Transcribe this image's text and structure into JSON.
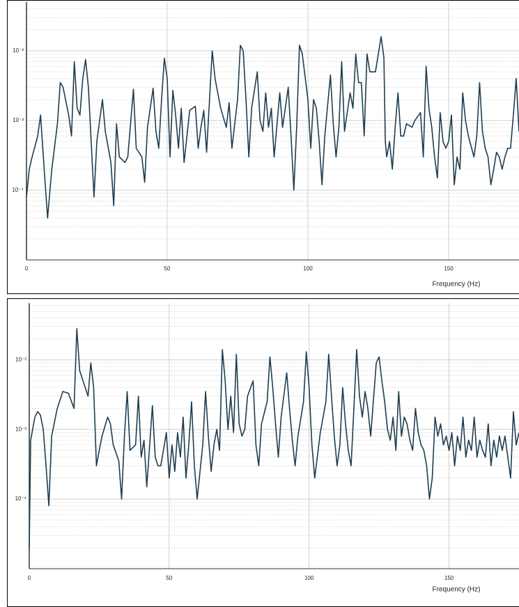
{
  "chart_data": [
    {
      "type": "line",
      "xlabel": "Frequency (Hz)",
      "log_y": true,
      "grid": true,
      "minor_grid": true,
      "xlim": [
        0,
        175
      ],
      "xticks": [
        0,
        50,
        100,
        150
      ],
      "ylim": [
        1e-05,
        0.05
      ],
      "yticks": [
        {
          "value": 0.0001,
          "label": "10⁻⁴"
        },
        {
          "value": 0.001,
          "label": "10⁻³"
        },
        {
          "value": 0.01,
          "label": "10⁻²"
        }
      ],
      "series": [
        {
          "color": "#1e3d50",
          "x": [
            0,
            1,
            2,
            4,
            5,
            6,
            7.5,
            9,
            11,
            12,
            13,
            15,
            16,
            17,
            18,
            19,
            20,
            21,
            22,
            24,
            25,
            27,
            28,
            30,
            31,
            32,
            33,
            35,
            36,
            38,
            39,
            41,
            42,
            43,
            45,
            46,
            47,
            48,
            49,
            50,
            51,
            52,
            53,
            54,
            55,
            56,
            58,
            60,
            61,
            62,
            63,
            64,
            66,
            67,
            69,
            71,
            72,
            73,
            75,
            76,
            77,
            78,
            79,
            80,
            82,
            83,
            84,
            85,
            86,
            87,
            88,
            90,
            91,
            93,
            94,
            95,
            96,
            97,
            98,
            100,
            101,
            102,
            103,
            104,
            105,
            106,
            108,
            109,
            110,
            111,
            112,
            113,
            115,
            116,
            117,
            118,
            119,
            120,
            121,
            122,
            124,
            126,
            127,
            127.5,
            128,
            129,
            130,
            131,
            132,
            133,
            134,
            135,
            137,
            138,
            140,
            141,
            142,
            143,
            144,
            145,
            146,
            147,
            148,
            149,
            150,
            151,
            152,
            153,
            154,
            155,
            156,
            157,
            159,
            160,
            161,
            162,
            163,
            164,
            165,
            166,
            167,
            168,
            169,
            170,
            171,
            172,
            173,
            174,
            175
          ],
          "values": [
            8e-05,
            0.0002,
            0.0003,
            0.0006,
            0.0012,
            0.0003,
            4e-05,
            0.0002,
            0.0009,
            0.0035,
            0.003,
            0.0012,
            0.0006,
            0.007,
            0.0015,
            0.0012,
            0.004,
            0.0075,
            0.003,
            8e-05,
            0.0005,
            0.002,
            0.0007,
            0.00025,
            6e-05,
            0.0009,
            0.0003,
            0.00025,
            0.0003,
            0.0028,
            0.0004,
            0.0003,
            0.00013,
            0.0008,
            0.0029,
            0.0007,
            0.0004,
            0.002,
            0.0078,
            0.004,
            0.0003,
            0.0027,
            0.0012,
            0.0004,
            0.0015,
            0.00025,
            0.0014,
            0.0016,
            0.0004,
            0.0008,
            0.0014,
            0.00035,
            0.01,
            0.004,
            0.0015,
            0.0008,
            0.0018,
            0.0004,
            0.002,
            0.012,
            0.01,
            0.002,
            0.0003,
            0.0015,
            0.005,
            0.001,
            0.0007,
            0.0025,
            0.0008,
            0.0015,
            0.0003,
            0.0025,
            0.0008,
            0.003,
            0.0006,
            0.0001,
            0.0008,
            0.012,
            0.009,
            0.002,
            0.0004,
            0.002,
            0.0015,
            0.0005,
            0.00012,
            0.0006,
            0.0045,
            0.0009,
            0.0003,
            0.0008,
            0.007,
            0.0007,
            0.0025,
            0.0015,
            0.009,
            0.0035,
            0.0035,
            0.0006,
            0.009,
            0.005,
            0.005,
            0.016,
            0.008,
            0.0005,
            0.0003,
            0.0005,
            0.0002,
            0.0008,
            0.0025,
            0.0006,
            0.0006,
            0.0009,
            0.0008,
            0.001,
            0.0013,
            0.0003,
            0.006,
            0.0015,
            0.0008,
            0.0003,
            0.00015,
            0.0013,
            0.0005,
            0.0004,
            0.0005,
            0.0012,
            0.00012,
            0.0003,
            0.0002,
            0.0025,
            0.001,
            0.0006,
            0.0003,
            0.0006,
            0.0035,
            0.0007,
            0.0004,
            0.0003,
            0.00012,
            0.0002,
            0.00035,
            0.0003,
            0.0002,
            0.0003,
            0.0004,
            0.0004,
            0.0012,
            0.004,
            0.0007
          ]
        }
      ]
    },
    {
      "type": "line",
      "xlabel": "Frequency (Hz)",
      "log_y": true,
      "grid": true,
      "minor_grid": true,
      "xlim": [
        0,
        175
      ],
      "xticks": [
        0,
        50,
        100,
        150
      ],
      "ylim": [
        1e-05,
        0.065
      ],
      "yticks": [
        {
          "value": 0.0001,
          "label": "10⁻⁴"
        },
        {
          "value": 0.001,
          "label": "10⁻³"
        },
        {
          "value": 0.01,
          "label": "10⁻²"
        }
      ],
      "series": [
        {
          "color": "#1e3d50",
          "x": [
            0,
            0.5,
            2,
            3,
            4,
            5,
            6,
            7,
            8,
            10,
            12,
            14,
            16,
            17,
            18,
            20,
            21,
            22,
            23,
            24,
            25,
            26,
            28,
            29,
            30,
            32,
            33,
            34,
            35,
            36,
            38,
            39,
            40,
            41,
            42,
            44,
            45,
            46,
            47,
            49,
            50,
            51,
            52,
            53,
            54,
            55,
            56,
            57,
            58,
            59,
            60,
            62,
            63,
            64,
            65,
            66,
            67,
            68,
            69,
            70,
            71,
            72,
            73,
            74,
            75,
            76,
            77,
            78,
            80,
            81,
            82,
            83,
            85,
            86,
            87,
            88,
            89,
            90,
            92,
            93,
            94,
            95,
            96,
            98,
            99,
            100,
            101,
            102,
            104,
            106,
            107,
            108,
            109,
            110,
            111,
            112,
            113,
            114,
            115,
            116,
            117,
            118,
            119,
            120,
            121,
            122,
            124,
            125,
            126,
            127,
            128,
            129,
            130,
            131,
            132,
            133,
            134,
            135,
            136,
            137,
            138,
            139,
            140,
            141,
            142,
            143,
            144,
            145,
            146,
            147,
            148,
            149,
            150,
            151,
            152,
            153,
            154,
            155,
            156,
            157,
            158,
            159,
            160,
            161,
            162,
            163,
            164,
            165,
            166,
            167,
            168,
            169,
            170,
            171,
            172,
            173,
            174,
            175
          ],
          "values": [
            2e-05,
            0.0007,
            0.0015,
            0.0018,
            0.0016,
            0.001,
            0.0003,
            8e-05,
            0.0008,
            0.002,
            0.0035,
            0.0033,
            0.002,
            0.028,
            0.007,
            0.004,
            0.003,
            0.009,
            0.004,
            0.0003,
            0.0005,
            0.0008,
            0.0015,
            0.0012,
            0.0006,
            0.00035,
            0.0001,
            0.0008,
            0.0035,
            0.0005,
            0.0006,
            0.003,
            0.0004,
            0.0007,
            0.00015,
            0.0022,
            0.0004,
            0.0003,
            0.0003,
            0.0009,
            0.0002,
            0.0006,
            0.00025,
            0.0009,
            0.0004,
            0.0015,
            0.0002,
            0.0006,
            0.0025,
            0.0003,
            0.0001,
            0.0006,
            0.0035,
            0.0008,
            0.00025,
            0.0006,
            0.001,
            0.0005,
            0.014,
            0.005,
            0.001,
            0.003,
            0.0009,
            0.012,
            0.0012,
            0.0008,
            0.001,
            0.003,
            0.005,
            0.0006,
            0.0003,
            0.0012,
            0.0025,
            0.011,
            0.004,
            0.0012,
            0.0004,
            0.0015,
            0.0065,
            0.002,
            0.0007,
            0.0003,
            0.0008,
            0.0025,
            0.013,
            0.004,
            0.0006,
            0.0002,
            0.0009,
            0.0025,
            0.012,
            0.003,
            0.0008,
            0.0003,
            0.0006,
            0.004,
            0.0012,
            0.0005,
            0.0003,
            0.002,
            0.014,
            0.003,
            0.0015,
            0.0035,
            0.002,
            0.0008,
            0.009,
            0.011,
            0.005,
            0.0025,
            0.001,
            0.0007,
            0.0015,
            0.0005,
            0.0035,
            0.0008,
            0.0015,
            0.0012,
            0.0007,
            0.0005,
            0.002,
            0.0009,
            0.0006,
            0.0005,
            0.0003,
            0.0001,
            0.0002,
            0.0015,
            0.0008,
            0.0012,
            0.0006,
            0.0008,
            0.0005,
            0.0009,
            0.0003,
            0.0008,
            0.0005,
            0.0015,
            0.0004,
            0.0007,
            0.0005,
            0.0015,
            0.0004,
            0.0007,
            0.0005,
            0.0004,
            0.0012,
            0.0003,
            0.0007,
            0.0004,
            0.0008,
            0.0005,
            0.0008,
            0.0004,
            0.0002,
            0.0018,
            0.0006,
            0.0009
          ]
        }
      ]
    }
  ]
}
